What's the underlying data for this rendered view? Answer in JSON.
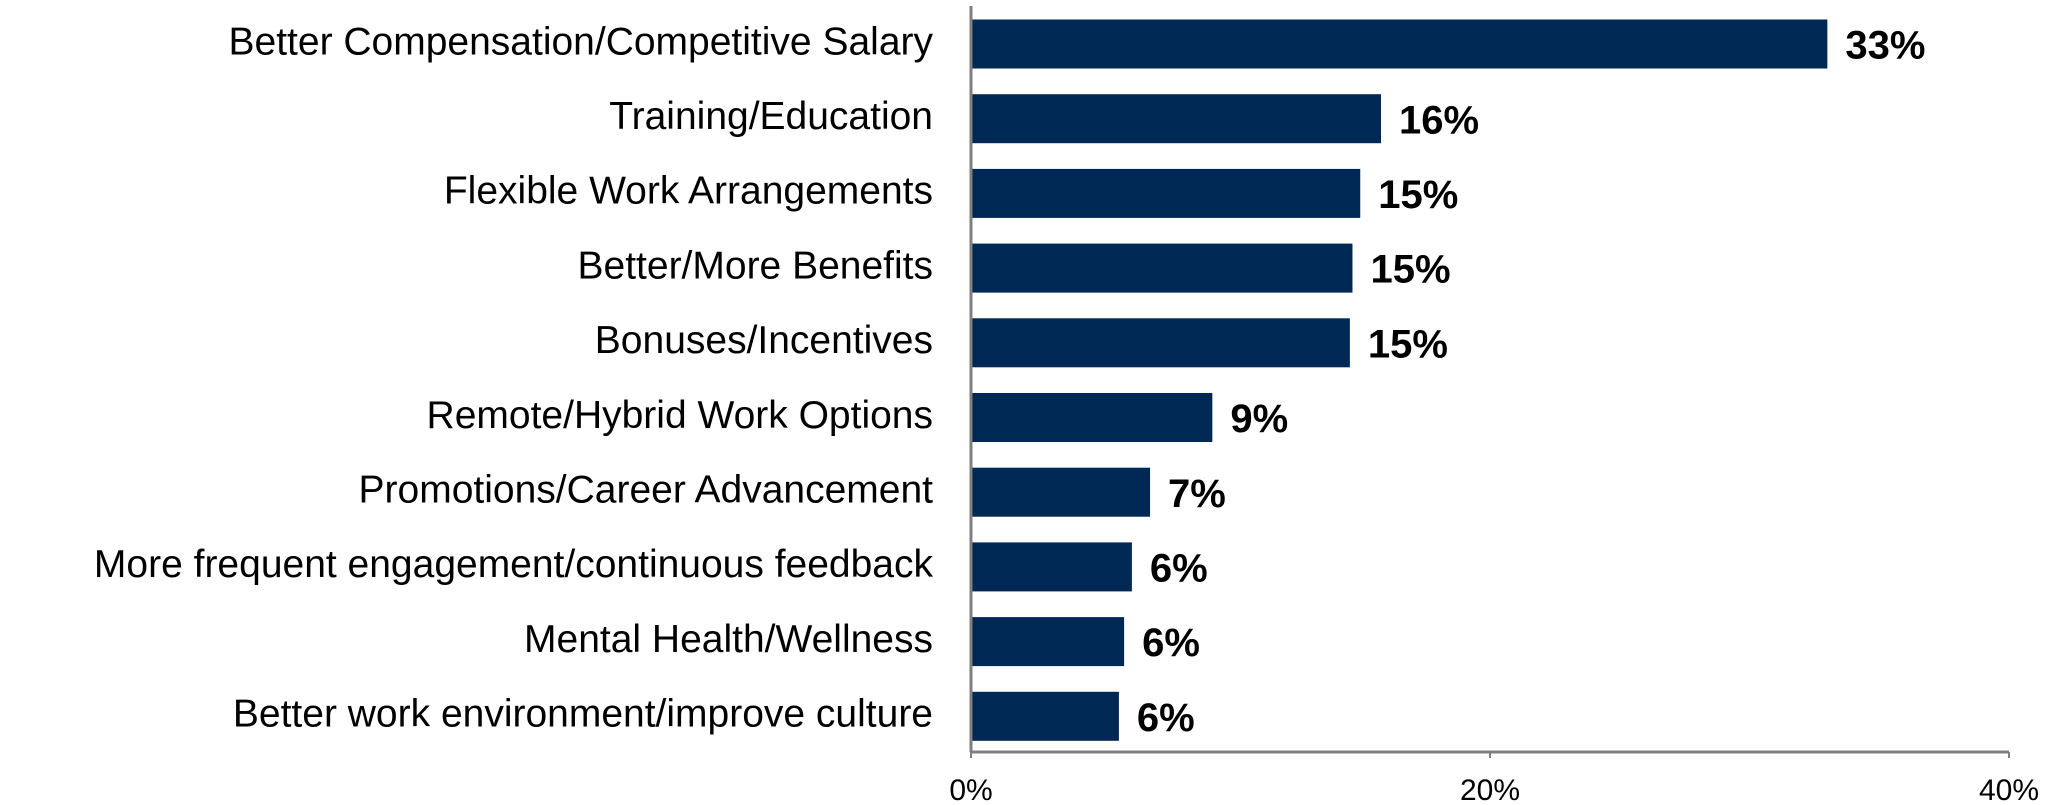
{
  "chart_data": {
    "type": "bar",
    "orientation": "horizontal",
    "categories": [
      "Better Compensation/Competitive Salary",
      "Training/Education",
      "Flexible Work Arrangements",
      "Better/More Benefits",
      "Bonuses/Incentives",
      "Remote/Hybrid Work Options",
      "Promotions/Career Advancement",
      "More frequent engagement/continuous feedback",
      "Mental Health/Wellness",
      "Better work environment/improve culture"
    ],
    "values": [
      33,
      15.8,
      15,
      14.7,
      14.6,
      9.3,
      6.9,
      6.2,
      5.9,
      5.7
    ],
    "value_labels": [
      "33%",
      "16%",
      "15%",
      "15%",
      "15%",
      "9%",
      "7%",
      "6%",
      "6%",
      "6%"
    ],
    "color": "#002855",
    "xlim": [
      0,
      40
    ],
    "xticks": [
      {
        "value": 0,
        "label": "0%"
      },
      {
        "value": 20,
        "label": "20%"
      },
      {
        "value": 40,
        "label": "40%"
      }
    ],
    "grid": false
  }
}
